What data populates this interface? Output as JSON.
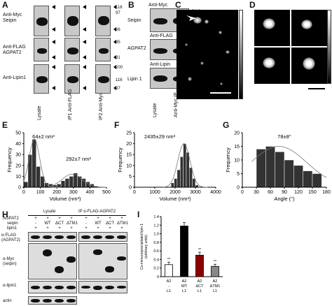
{
  "panels": {
    "A": {
      "label": "A",
      "rows": [
        "Anti-Myc\nSeipin",
        "Anti-FLAG\nAGPAT2",
        "Anti-Lipin1"
      ],
      "lanes": [
        "Lysate",
        "IP1 Anti-FLAG",
        "IP2 Anti-Myc"
      ],
      "mw_markers": [
        "116",
        "97",
        "66",
        "45",
        "31",
        "200",
        "116",
        "97"
      ]
    },
    "B": {
      "label": "B",
      "header": "Anti-Myc",
      "rows": [
        "Seipin",
        "AGPAT2",
        "Lipin 1"
      ],
      "subheaders": [
        "Anti-FLAG",
        "Anti-Lipin"
      ],
      "lanes": [
        "Lysate",
        "Anti-Myc IP"
      ],
      "mw_markers": [
        "116",
        "97",
        "66",
        "45",
        "31",
        "200",
        "116",
        "97"
      ]
    },
    "C": {
      "label": "C"
    },
    "D": {
      "label": "D"
    },
    "E": {
      "label": "E",
      "annotations": [
        "64±2 nm³",
        "292±7 nm³"
      ],
      "chart_data": {
        "type": "bar",
        "xlabel": "Volume (nm³)",
        "ylabel": "Frequency",
        "xlim": [
          0,
          500
        ],
        "ylim": [
          0,
          50
        ],
        "x_ticks": [
          "0",
          "100",
          "200",
          "300",
          "400",
          "500"
        ],
        "y_ticks": [
          "0",
          "10",
          "20",
          "30",
          "40",
          "50"
        ],
        "bin_starts": [
          0,
          25,
          50,
          75,
          100,
          125,
          150,
          175,
          200,
          225,
          250,
          275,
          300,
          325,
          350,
          375,
          400,
          425
        ],
        "bin_width": 25,
        "values": [
          5,
          30,
          44,
          19,
          10,
          4,
          3,
          2,
          3,
          6,
          8,
          10,
          13,
          10,
          8,
          5,
          3,
          1
        ]
      }
    },
    "F": {
      "label": "F",
      "annotations": [
        "2435±29 nm³"
      ],
      "chart_data": {
        "type": "bar",
        "xlabel": "Volume (nm³)",
        "ylabel": "Frequency",
        "xlim": [
          0,
          4000
        ],
        "ylim": [
          0,
          25
        ],
        "x_ticks": [
          "0",
          "1000",
          "2000",
          "3000",
          "4000"
        ],
        "y_ticks": [
          "0",
          "5",
          "10",
          "15",
          "20",
          "25"
        ],
        "bin_starts": [
          1800,
          1950,
          2100,
          2250,
          2400,
          2550,
          2700,
          2850,
          3000
        ],
        "bin_width": 150,
        "values": [
          2,
          4,
          8,
          14,
          20,
          16,
          9,
          4,
          1
        ]
      }
    },
    "G": {
      "label": "G",
      "annotations": [
        "78±8°"
      ],
      "chart_data": {
        "type": "bar",
        "xlabel": "Angle (°)",
        "ylabel": "Frequency",
        "xlim": [
          0,
          180
        ],
        "ylim": [
          0,
          20
        ],
        "x_ticks": [
          "0",
          "30",
          "60",
          "90",
          "120",
          "150",
          "180"
        ],
        "y_ticks": [
          "0",
          "5",
          "10",
          "15",
          "20"
        ],
        "bin_starts": [
          30,
          50,
          70,
          90,
          110,
          130,
          150
        ],
        "bin_width": 20,
        "values": [
          14,
          15,
          13,
          10,
          8,
          6,
          5
        ]
      }
    },
    "H": {
      "label": "H",
      "group_lysate": "Lysate",
      "group_ip": "IP α-FLAG-AGPAT2",
      "row_labels": [
        "AGPAT2",
        "seipin",
        "lipin1"
      ],
      "lysate_signs": {
        "agpat2": [
          "+",
          "+",
          "+",
          "+"
        ],
        "seipin": [
          "-",
          "WT",
          "ΔCT",
          "ΔTM1"
        ],
        "lipin1": [
          "+",
          "+",
          "+",
          "+"
        ]
      },
      "ip_signs": {
        "agpat2": [
          "+",
          "+",
          "+",
          "+"
        ],
        "seipin": [
          "-",
          "WT",
          "ΔCT",
          "ΔTM1"
        ],
        "lipin1": [
          "+",
          "+",
          "+",
          "+"
        ]
      },
      "blot_labels": [
        "α-FLAG\n(AGPAT2)",
        "α-Myc\n(seipin)",
        "α-lipin1",
        "actin"
      ]
    },
    "I": {
      "label": "I",
      "significance": [
        "**",
        "",
        "**",
        "**"
      ],
      "chart_data": {
        "type": "bar",
        "ylabel": "Co-immunoprecipitated lipin 1\n(arbitrary units)",
        "ylim": [
          0,
          1.4
        ],
        "y_ticks": [
          "0",
          "0.2",
          "0.4",
          "0.6",
          "0.8",
          "1.0",
          "1.2",
          "1.4"
        ],
        "categories": [
          "A2\n-\nL1",
          "A2\nWT\nL1",
          "A2\nΔCT\nL1",
          "A2\nΔTM1\nL1"
        ],
        "values": [
          0.28,
          1.18,
          0.5,
          0.24
        ],
        "errors": [
          0.06,
          0.08,
          0.07,
          0.05
        ],
        "colors": [
          "#ffffff",
          "#000000",
          "#8b0000",
          "#888888"
        ]
      }
    }
  }
}
